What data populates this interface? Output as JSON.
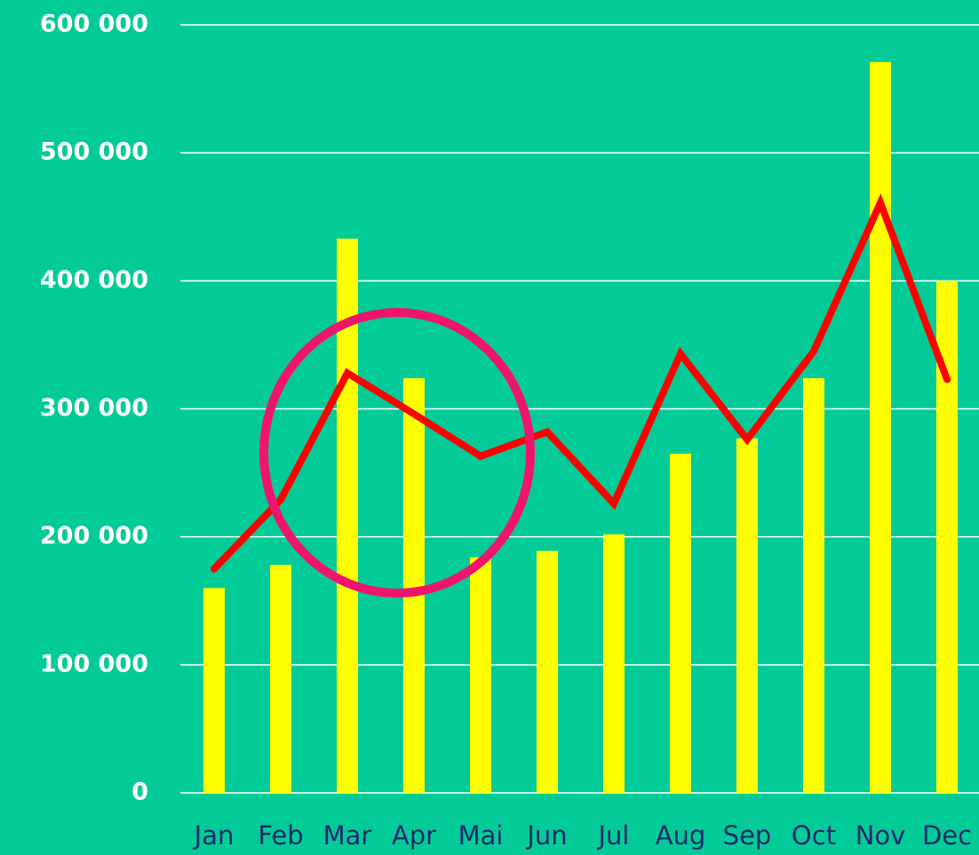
{
  "chart_data": {
    "type": "bar",
    "categories": [
      "Jan",
      "Feb",
      "Mar",
      "Apr",
      "Mai",
      "Jun",
      "Jul",
      "Aug",
      "Sep",
      "Oct",
      "Nov",
      "Dec"
    ],
    "series": [
      {
        "type": "bar",
        "color": "#ffff00",
        "values": [
          160000,
          178000,
          433000,
          324000,
          184000,
          189000,
          202000,
          265000,
          277000,
          324000,
          571000,
          400000
        ]
      },
      {
        "type": "line",
        "color": "#ff0000",
        "values": [
          175000,
          229000,
          328000,
          296000,
          263000,
          282000,
          226000,
          343000,
          276000,
          345000,
          461000,
          323000
        ]
      }
    ],
    "ylim": [
      0,
      600000
    ],
    "yticks": [
      0,
      {
        "value": 100000,
        "label": "100 000"
      },
      {
        "value": 200000,
        "label": "200 000"
      },
      {
        "value": 300000,
        "label": "300 000"
      },
      {
        "value": 400000,
        "label": "400 000"
      },
      {
        "value": 500000,
        "label": "500 000"
      },
      {
        "value": 600000,
        "label": "600 000"
      }
    ],
    "grid": true
  }
}
